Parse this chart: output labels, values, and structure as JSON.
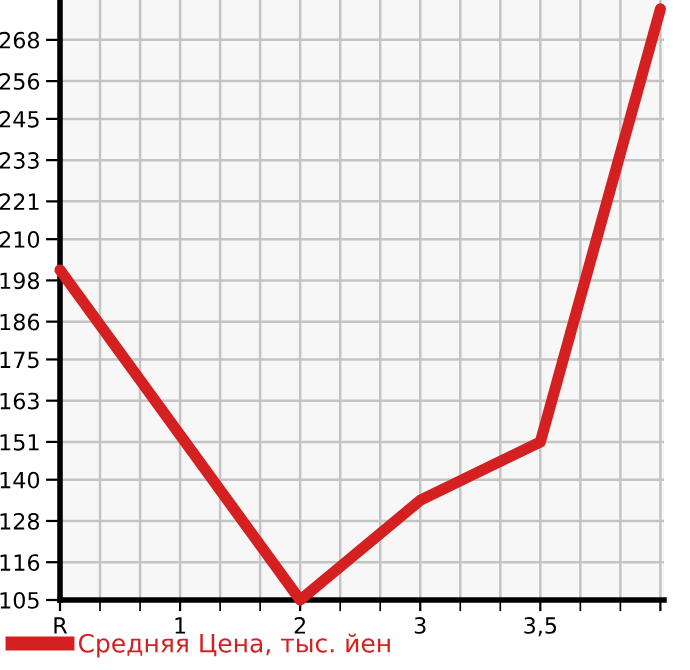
{
  "chart_data": {
    "type": "line",
    "categories": [
      "R",
      "1",
      "2",
      "3",
      "3,5",
      null
    ],
    "series": [
      {
        "name": "Средняя Цена, тыс. йен",
        "color": "#d42020",
        "values": [
          201,
          153,
          105,
          134,
          151,
          277
        ]
      }
    ],
    "ylim": [
      105,
      279.6
    ],
    "yticks": [
      105,
      116,
      128,
      140,
      151,
      163,
      175,
      186,
      198,
      210,
      221,
      233,
      245,
      256,
      268
    ],
    "grid": true,
    "legend": "bottom left",
    "marker": "none",
    "line_style": "solid"
  }
}
